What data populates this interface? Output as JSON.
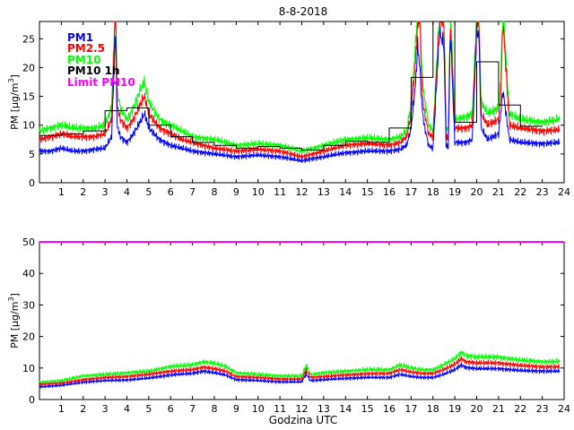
{
  "figure": {
    "title": "8-8-2018",
    "xlabel": "Godzina UTC"
  },
  "colors": {
    "pm1": "#0000ff",
    "pm25": "#ff0000",
    "pm10": "#00ff00",
    "pm10_1h": "#000000",
    "limit": "#ff00ff"
  },
  "chart_data": [
    {
      "type": "line",
      "panel": "top",
      "title": "8-8-2018",
      "xlabel": "",
      "ylabel": "PM [μg/m3]",
      "ylabel_main": "PM [μg/m",
      "ylabel_sup": "3",
      "ylabel_end": "]",
      "xlim": [
        0,
        24
      ],
      "ylim": [
        0,
        28
      ],
      "xticks": [
        1,
        2,
        3,
        4,
        5,
        6,
        7,
        8,
        9,
        10,
        11,
        12,
        13,
        14,
        15,
        16,
        17,
        18,
        19,
        20,
        21,
        22,
        23,
        24
      ],
      "yticks": [
        0,
        5,
        10,
        15,
        20,
        25
      ],
      "legend_position": "top-left",
      "legend": [
        "PM1",
        "PM2.5",
        "PM10",
        "PM10 1h",
        "Limit PM10"
      ],
      "series": [
        {
          "name": "PM10",
          "color": "#00ff00",
          "x": [
            0,
            0.5,
            1,
            1.5,
            2,
            2.5,
            3,
            3.3,
            3.45,
            3.5,
            3.55,
            3.7,
            4,
            4.3,
            4.6,
            4.8,
            5,
            5.5,
            6,
            6.5,
            7,
            8,
            9,
            10,
            11,
            12,
            12.5,
            13,
            14,
            15,
            16,
            16.5,
            16.8,
            17,
            17.2,
            17.3,
            17.4,
            17.5,
            17.6,
            17.8,
            18,
            18.3,
            18.5,
            18.6,
            18.7,
            18.8,
            19,
            19.5,
            19.8,
            20,
            20.1,
            20.2,
            20.5,
            21,
            21.1,
            21.2,
            21.5,
            22,
            23,
            23.8
          ],
          "values": [
            9,
            9.5,
            10,
            9.5,
            9.5,
            9.5,
            10,
            13,
            30,
            30,
            16,
            13,
            11,
            13,
            16,
            17.5,
            14,
            11,
            10,
            9,
            8,
            7.5,
            6.5,
            6.8,
            6.5,
            5.5,
            6,
            6.5,
            7.5,
            7.8,
            7.5,
            8,
            9,
            14,
            24,
            30,
            30,
            19,
            15,
            10,
            9,
            30,
            30,
            9.5,
            9,
            30,
            11,
            11.5,
            12,
            30,
            30,
            14,
            12,
            13,
            18,
            30,
            12,
            11,
            10.5,
            11
          ]
        },
        {
          "name": "PM2.5",
          "color": "#ff0000",
          "x": [
            0,
            0.5,
            1,
            1.5,
            2,
            2.5,
            3,
            3.3,
            3.45,
            3.5,
            3.55,
            3.7,
            4,
            4.3,
            4.6,
            4.8,
            5,
            5.5,
            6,
            6.5,
            7,
            8,
            9,
            10,
            11,
            12,
            12.5,
            13,
            14,
            15,
            16,
            16.5,
            16.8,
            17,
            17.2,
            17.3,
            17.4,
            17.5,
            17.6,
            17.8,
            18,
            18.3,
            18.5,
            18.6,
            18.7,
            18.8,
            19,
            19.5,
            19.8,
            20,
            20.1,
            20.2,
            20.5,
            21,
            21.1,
            21.2,
            21.5,
            22,
            23,
            23.8
          ],
          "values": [
            7.5,
            8,
            8.5,
            8,
            8,
            8,
            8.5,
            11,
            28,
            28,
            13.5,
            11,
            9.5,
            11,
            13.5,
            15,
            12,
            9.5,
            8.5,
            7.5,
            7,
            6,
            5.5,
            5.8,
            5.5,
            4.5,
            5,
            5.5,
            6.5,
            6.8,
            6.5,
            7,
            8,
            12,
            21,
            28,
            28,
            16,
            12.5,
            8.5,
            8,
            28,
            28,
            8,
            7.5,
            28,
            9.5,
            9.5,
            10,
            28,
            28,
            12,
            10,
            11,
            15,
            28,
            10,
            9.5,
            9,
            9.2
          ]
        },
        {
          "name": "PM1",
          "color": "#0000ff",
          "x": [
            0,
            0.5,
            1,
            1.5,
            2,
            2.5,
            3,
            3.3,
            3.45,
            3.5,
            3.55,
            3.7,
            4,
            4.3,
            4.6,
            4.8,
            5,
            5.5,
            6,
            6.5,
            7,
            8,
            9,
            10,
            11,
            12,
            12.5,
            13,
            14,
            15,
            16,
            16.5,
            16.8,
            17,
            17.2,
            17.3,
            17.4,
            17.5,
            17.6,
            17.8,
            18,
            18.3,
            18.5,
            18.6,
            18.7,
            18.8,
            19,
            19.5,
            19.8,
            20,
            20.1,
            20.2,
            20.5,
            21,
            21.1,
            21.2,
            21.5,
            22,
            23,
            23.8
          ],
          "values": [
            5.5,
            5.5,
            6,
            5.5,
            5.5,
            5.8,
            6,
            8,
            24,
            24,
            10,
            8,
            7,
            8.5,
            10.5,
            12,
            9.5,
            7.5,
            6.5,
            6,
            5.5,
            5,
            4.5,
            4.8,
            4.5,
            3.8,
            4.2,
            4.5,
            5.2,
            5.5,
            5.5,
            5.8,
            6.5,
            9.5,
            17,
            24,
            20,
            13,
            10,
            6.5,
            6,
            26,
            24,
            6.5,
            6,
            26,
            7,
            7,
            7.5,
            26,
            26,
            9.5,
            7.5,
            8.5,
            12,
            16,
            7.5,
            7,
            6.8,
            7
          ]
        },
        {
          "name": "PM10 1h",
          "color": "#000000",
          "step": true,
          "x": [
            0,
            1,
            2,
            3,
            4,
            5,
            6,
            7,
            8,
            9,
            10,
            11,
            12,
            13,
            14,
            15,
            16,
            17,
            18,
            19,
            20,
            21,
            22
          ],
          "values": [
            8.2,
            8.5,
            9,
            12.5,
            13,
            10,
            8,
            7,
            6.5,
            6,
            6.3,
            6,
            5.7,
            6.5,
            7.2,
            7,
            9.5,
            18.3,
            30,
            10.5,
            21,
            13.5,
            9.8
          ]
        }
      ]
    },
    {
      "type": "line",
      "panel": "bottom",
      "title": "",
      "xlabel": "Godzina UTC",
      "ylabel": "PM [μg/m3]",
      "ylabel_main": "PM [μg/m",
      "ylabel_sup": "3",
      "ylabel_end": "]",
      "xlim": [
        0,
        24
      ],
      "ylim": [
        0,
        50
      ],
      "xticks": [
        1,
        2,
        3,
        4,
        5,
        6,
        7,
        8,
        9,
        10,
        11,
        12,
        13,
        14,
        15,
        16,
        17,
        18,
        19,
        20,
        21,
        22,
        23,
        24
      ],
      "yticks": [
        0,
        10,
        20,
        30,
        40,
        50
      ],
      "series": [
        {
          "name": "Limit PM10",
          "color": "#ff00ff",
          "x": [
            0,
            24
          ],
          "values": [
            50,
            50
          ]
        },
        {
          "name": "PM10",
          "color": "#00ff00",
          "x": [
            0,
            1,
            2,
            3,
            4,
            5,
            6,
            7,
            7.5,
            8,
            8.5,
            9,
            10,
            11,
            12,
            12.2,
            12.4,
            13,
            14,
            15,
            16,
            16.5,
            17,
            17.5,
            18,
            18.5,
            19,
            19.3,
            19.5,
            20,
            21,
            22,
            23,
            23.8
          ],
          "values": [
            5.5,
            6,
            7.5,
            8,
            8.5,
            9,
            10.5,
            11,
            12,
            11.5,
            10.5,
            8.5,
            8,
            7.5,
            7.5,
            11,
            8,
            8.5,
            9,
            9.5,
            9.5,
            11,
            10,
            9.5,
            9.5,
            11,
            13,
            15,
            14,
            13.5,
            13.5,
            12.5,
            12,
            12
          ]
        },
        {
          "name": "PM2.5",
          "color": "#ff0000",
          "x": [
            0,
            1,
            2,
            3,
            4,
            5,
            6,
            7,
            7.5,
            8,
            8.5,
            9,
            10,
            11,
            12,
            12.2,
            12.4,
            13,
            14,
            15,
            16,
            16.5,
            17,
            17.5,
            18,
            18.5,
            19,
            19.3,
            19.5,
            20,
            21,
            22,
            23,
            23.8
          ],
          "values": [
            4.8,
            5.2,
            6.3,
            7,
            7.3,
            8,
            9,
            9.5,
            10.3,
            9.8,
            9,
            7.3,
            7,
            6.5,
            6.5,
            9.5,
            7,
            7.3,
            7.8,
            8.2,
            8.3,
            9.5,
            8.7,
            8.3,
            8.3,
            9.5,
            11.2,
            13,
            12,
            11.6,
            11.6,
            10.8,
            10.4,
            10.4
          ]
        },
        {
          "name": "PM1",
          "color": "#0000ff",
          "x": [
            0,
            1,
            2,
            3,
            4,
            5,
            6,
            7,
            7.5,
            8,
            8.5,
            9,
            10,
            11,
            12,
            12.2,
            12.4,
            13,
            14,
            15,
            16,
            16.5,
            17,
            17.5,
            18,
            18.5,
            19,
            19.3,
            19.5,
            20,
            21,
            22,
            23,
            23.8
          ],
          "values": [
            4,
            4.5,
            5.5,
            6,
            6.2,
            6.8,
            7.8,
            8.3,
            9,
            8.5,
            7.8,
            6.3,
            6,
            5.6,
            5.6,
            8.2,
            6,
            6.3,
            6.7,
            7,
            7,
            8,
            7.3,
            7,
            7,
            8,
            9.5,
            11,
            10.2,
            9.8,
            9.8,
            9.2,
            9,
            9
          ]
        }
      ]
    }
  ]
}
